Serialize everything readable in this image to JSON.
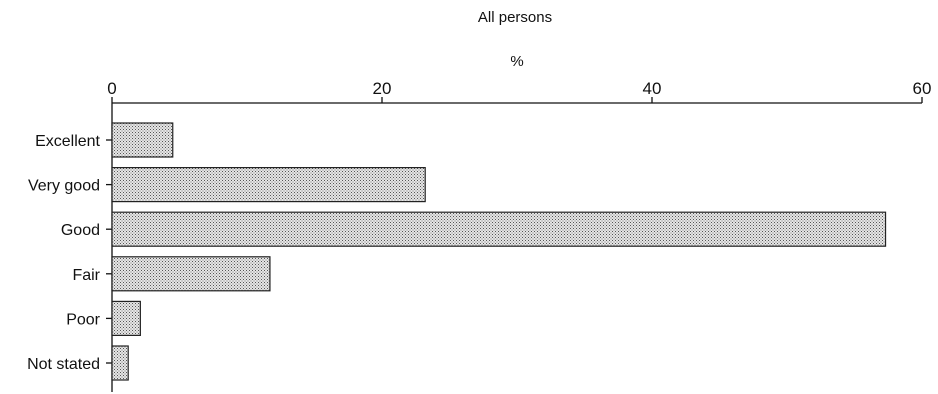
{
  "chart_data": {
    "type": "bar",
    "orientation": "horizontal",
    "title": "All persons",
    "unit_label": "%",
    "categories": [
      "Excellent",
      "Very good",
      "Good",
      "Fair",
      "Poor",
      "Not stated"
    ],
    "values": [
      4.5,
      23.2,
      57.3,
      11.7,
      2.1,
      1.2
    ],
    "xlim": [
      0,
      60
    ],
    "x_ticks": [
      0,
      20,
      40,
      60
    ],
    "x_tick_labels": [
      "0",
      "20",
      "40",
      "60"
    ],
    "axis_position": "top",
    "grid": false,
    "legend": "none"
  }
}
